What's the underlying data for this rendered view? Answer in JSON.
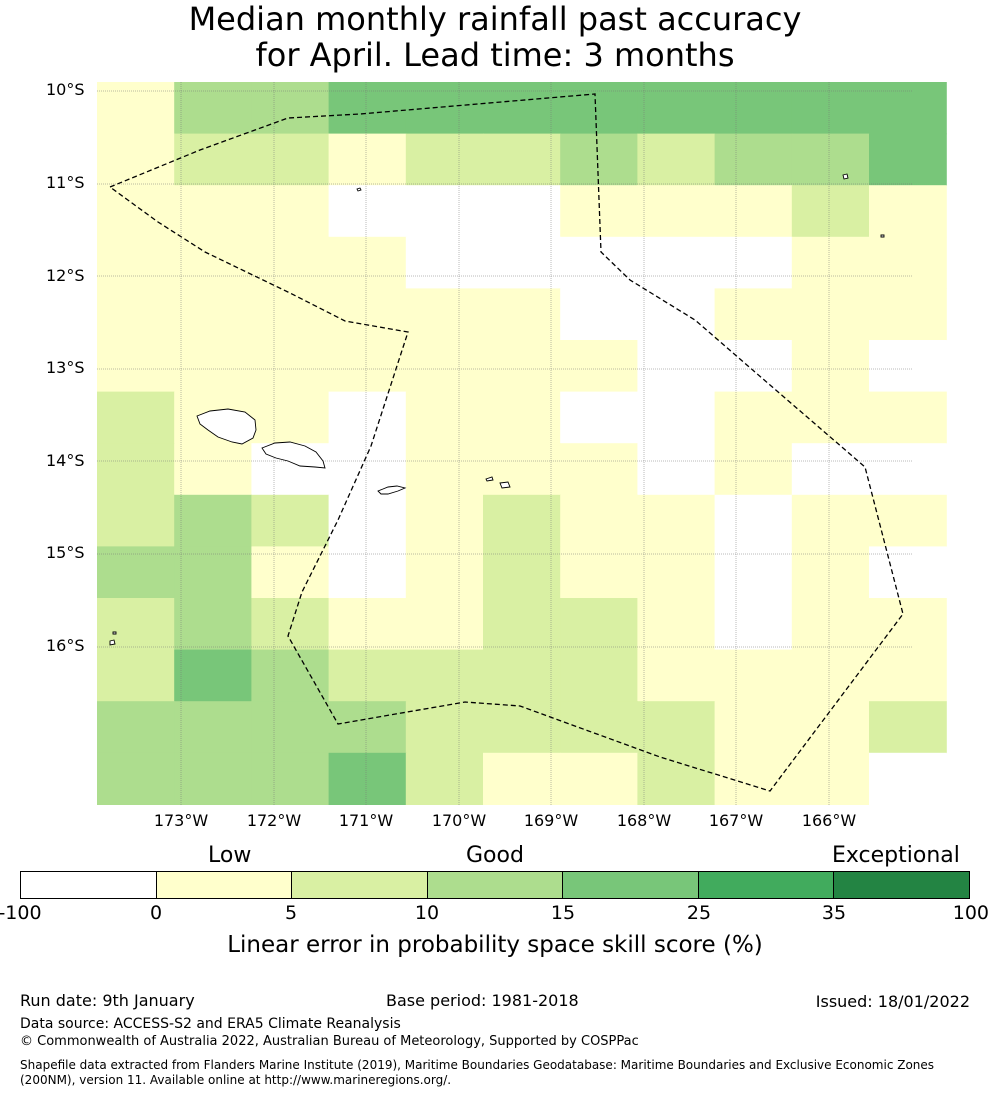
{
  "title": {
    "line1": "Median monthly rainfall past accuracy",
    "line2": "for April. Lead time: 3 months"
  },
  "map": {
    "lat_labels": [
      "10°S",
      "11°S",
      "12°S",
      "13°S",
      "14°S",
      "15°S",
      "16°S"
    ],
    "lon_labels": [
      "173°W",
      "172°W",
      "171°W",
      "170°W",
      "169°W",
      "168°W",
      "167°W",
      "166°W"
    ],
    "colors": [
      "#ffffff",
      "#ffffcc",
      "#d9f0a3",
      "#addd8e",
      "#78c679",
      "#41ab5d",
      "#238443"
    ],
    "grid_levels": [
      [
        1,
        3,
        3,
        4,
        4,
        4,
        4,
        4,
        4,
        4,
        4
      ],
      [
        1,
        2,
        2,
        1,
        2,
        2,
        3,
        2,
        3,
        3,
        4
      ],
      [
        1,
        1,
        1,
        0,
        0,
        0,
        1,
        1,
        1,
        2,
        1
      ],
      [
        1,
        1,
        1,
        1,
        0,
        0,
        0,
        0,
        0,
        1,
        1
      ],
      [
        1,
        1,
        1,
        1,
        1,
        1,
        0,
        0,
        1,
        1,
        1
      ],
      [
        1,
        1,
        1,
        1,
        1,
        1,
        1,
        0,
        0,
        1,
        0
      ],
      [
        2,
        1,
        1,
        0,
        1,
        1,
        0,
        0,
        1,
        1,
        1
      ],
      [
        2,
        1,
        0,
        0,
        1,
        1,
        1,
        0,
        1,
        0,
        0
      ],
      [
        2,
        3,
        2,
        0,
        1,
        2,
        1,
        1,
        0,
        1,
        1
      ],
      [
        3,
        3,
        1,
        0,
        1,
        2,
        1,
        1,
        0,
        1,
        0
      ],
      [
        2,
        3,
        2,
        1,
        1,
        2,
        2,
        1,
        0,
        1,
        1
      ],
      [
        2,
        4,
        3,
        2,
        2,
        2,
        2,
        1,
        1,
        1,
        1
      ],
      [
        3,
        3,
        3,
        3,
        2,
        2,
        2,
        2,
        1,
        1,
        2
      ],
      [
        3,
        3,
        3,
        4,
        2,
        1,
        1,
        2,
        1,
        1,
        0
      ]
    ]
  },
  "legend": {
    "bands": [
      "Low",
      "Good",
      "Exceptional"
    ],
    "ticks": [
      "-100",
      "0",
      "5",
      "10",
      "15",
      "25",
      "35",
      "100"
    ],
    "label": "Linear error in probability space skill score (%)"
  },
  "footer": {
    "run_date": "Run date: 9th January",
    "base_period": "Base period: 1981-2018",
    "issued": "Issued: 18/01/2022",
    "data_source": "Data source: ACCESS-S2 and ERA5 Climate Reanalysis",
    "copyright": "© Commonwealth of Australia 2022, Australian Bureau of Meteorology, Supported by COSPPac",
    "shapefile_1": "Shapefile data extracted from Flanders Marine Institute (2019), Maritime Boundaries Geodatabase: Maritime Boundaries and Exclusive Economic Zones",
    "shapefile_2": "(200NM), version 11. Available online at http://www.marineregions.org/."
  }
}
